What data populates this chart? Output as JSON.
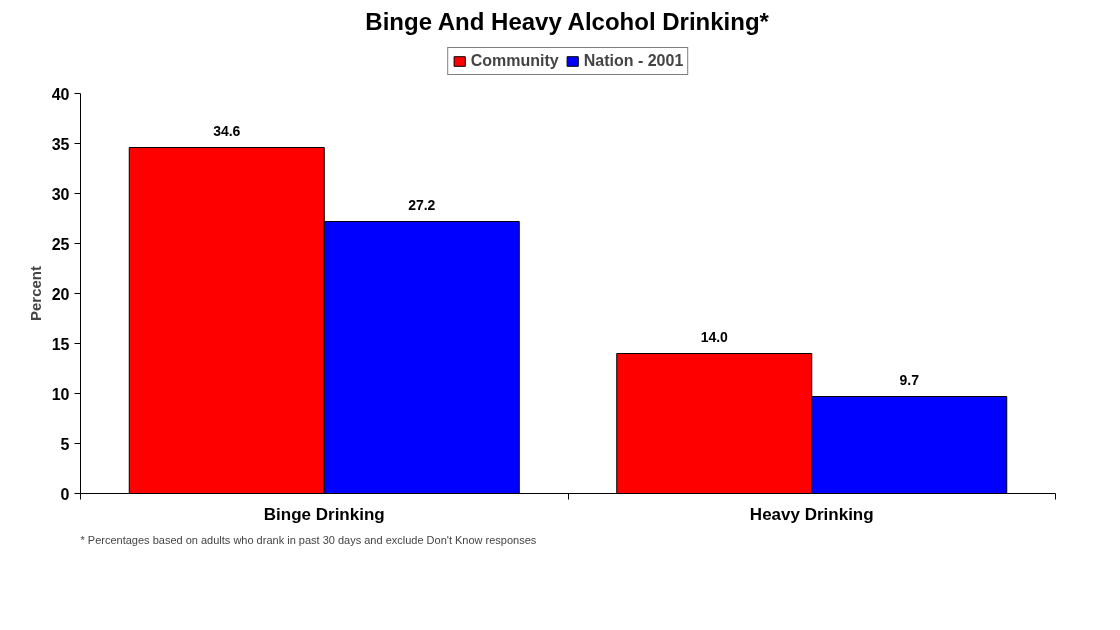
{
  "chart_data": {
    "type": "bar",
    "title": "Binge And Heavy Alcohol Drinking*",
    "ylabel": "Percent",
    "categories": [
      "Binge Drinking",
      "Heavy Drinking"
    ],
    "series": [
      {
        "name": "Community",
        "color": "#ff0000",
        "values": [
          34.6,
          14.0
        ],
        "value_labels": [
          "34.6",
          "14.0"
        ]
      },
      {
        "name": "Nation - 2001",
        "color": "#0000ff",
        "values": [
          27.2,
          9.7
        ],
        "value_labels": [
          "27.2",
          "9.7"
        ]
      }
    ],
    "ylim": [
      0,
      40
    ],
    "yticks": [
      0,
      5,
      10,
      15,
      20,
      25,
      30,
      35,
      40
    ],
    "grid": false,
    "legend": "top",
    "annotations": [
      "* Percentages based on adults who drank in past 30 days and exclude Don't Know responses"
    ]
  }
}
